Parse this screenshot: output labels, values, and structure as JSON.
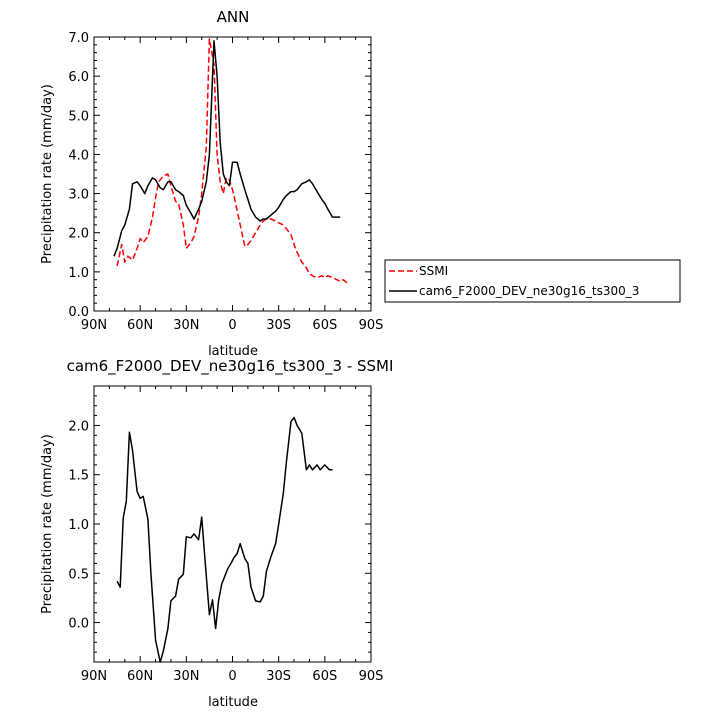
{
  "chart_data": [
    {
      "type": "line",
      "title": "ANN",
      "xlabel": "latitude",
      "ylabel": "Precipitation rate (mm/day)",
      "xlim": [
        90,
        -90
      ],
      "ylim": [
        0,
        7
      ],
      "x_ticks": [
        90,
        60,
        30,
        0,
        -30,
        -60,
        -90
      ],
      "x_tick_labels": [
        "90N",
        "60N",
        "30N",
        "0",
        "30S",
        "60S",
        "90S"
      ],
      "y_ticks": [
        0,
        1,
        2,
        3,
        4,
        5,
        6,
        7
      ],
      "y_tick_labels": [
        "0.0",
        "1.0",
        "2.0",
        "3.0",
        "4.0",
        "5.0",
        "6.0",
        "7.0"
      ],
      "legend_position": "right",
      "series": [
        {
          "name": "SSMI",
          "color": "#ff0000",
          "style": "dashed",
          "x": [
            75,
            72,
            70,
            68,
            65,
            62,
            60,
            58,
            55,
            52,
            50,
            48,
            45,
            42,
            40,
            37,
            35,
            32,
            30,
            27,
            25,
            22,
            20,
            17,
            15,
            12,
            10,
            8,
            6,
            4,
            2,
            0,
            -2,
            -5,
            -8,
            -10,
            -12,
            -15,
            -18,
            -20,
            -22,
            -25,
            -28,
            -30,
            -33,
            -35,
            -38,
            -40,
            -42,
            -45,
            -48,
            -50,
            -52,
            -55,
            -58,
            -60,
            -62,
            -65,
            -68,
            -70,
            -72,
            -75
          ],
          "y": [
            1.15,
            1.7,
            1.25,
            1.4,
            1.3,
            1.6,
            1.85,
            1.75,
            1.9,
            2.4,
            2.9,
            3.3,
            3.45,
            3.5,
            3.2,
            2.8,
            2.75,
            2.2,
            1.6,
            1.75,
            1.9,
            2.4,
            3.0,
            4.2,
            6.95,
            6.3,
            4.0,
            3.3,
            3.0,
            3.4,
            3.35,
            3.1,
            2.75,
            2.2,
            1.65,
            1.7,
            1.8,
            2.0,
            2.2,
            2.3,
            2.35,
            2.35,
            2.3,
            2.25,
            2.2,
            2.1,
            1.95,
            1.7,
            1.5,
            1.25,
            1.1,
            0.95,
            0.9,
            0.85,
            0.9,
            0.85,
            0.9,
            0.85,
            0.8,
            0.75,
            0.8,
            0.7
          ]
        },
        {
          "name": "cam6_F2000_DEV_ne30g16_ts300_3",
          "color": "#000000",
          "style": "solid",
          "x": [
            77,
            75,
            72,
            70,
            67,
            65,
            62,
            60,
            57,
            55,
            52,
            50,
            47,
            45,
            42,
            40,
            37,
            35,
            32,
            30,
            27,
            25,
            22,
            20,
            17,
            15,
            12,
            10,
            8,
            6,
            4,
            2,
            0,
            -3,
            -5,
            -8,
            -10,
            -12,
            -15,
            -18,
            -20,
            -22,
            -25,
            -28,
            -30,
            -33,
            -35,
            -38,
            -40,
            -42,
            -45,
            -48,
            -50,
            -52,
            -55,
            -58,
            -60,
            -62,
            -65,
            -68,
            -70
          ],
          "y": [
            1.4,
            1.6,
            2.05,
            2.2,
            2.6,
            3.25,
            3.3,
            3.2,
            3.0,
            3.2,
            3.4,
            3.35,
            3.15,
            3.1,
            3.3,
            3.3,
            3.1,
            3.05,
            2.95,
            2.7,
            2.5,
            2.35,
            2.6,
            2.8,
            3.3,
            4.0,
            6.9,
            6.0,
            4.3,
            3.5,
            3.3,
            3.2,
            3.8,
            3.8,
            3.5,
            3.1,
            2.85,
            2.6,
            2.4,
            2.3,
            2.35,
            2.35,
            2.45,
            2.55,
            2.65,
            2.85,
            2.95,
            3.05,
            3.05,
            3.1,
            3.25,
            3.3,
            3.35,
            3.25,
            3.05,
            2.85,
            2.75,
            2.6,
            2.4,
            2.4,
            2.4
          ]
        }
      ]
    },
    {
      "type": "line",
      "title": "cam6_F2000_DEV_ne30g16_ts300_3 - SSMI",
      "xlabel": "latitude",
      "ylabel": "Precipitation rate (mm/day)",
      "xlim": [
        90,
        -90
      ],
      "ylim": [
        -0.4,
        2.4
      ],
      "x_ticks": [
        90,
        60,
        30,
        0,
        -30,
        -60,
        -90
      ],
      "x_tick_labels": [
        "90N",
        "60N",
        "30N",
        "0",
        "30S",
        "60S",
        "90S"
      ],
      "y_ticks": [
        0,
        0.5,
        1,
        1.5,
        2
      ],
      "y_tick_labels": [
        "0.0",
        "0.5",
        "1.0",
        "1.5",
        "2.0"
      ],
      "series": [
        {
          "color": "#000000",
          "style": "solid",
          "x": [
            75,
            73,
            71,
            69,
            67,
            65,
            62,
            60,
            58,
            55,
            53,
            50,
            47,
            45,
            42,
            40,
            37,
            35,
            32,
            30,
            27,
            25,
            22,
            20,
            17,
            15,
            13,
            11,
            9,
            7,
            5,
            3,
            1,
            -1,
            -3,
            -5,
            -8,
            -10,
            -12,
            -15,
            -18,
            -20,
            -22,
            -25,
            -28,
            -30,
            -33,
            -35,
            -38,
            -40,
            -42,
            -45,
            -48,
            -50,
            -52,
            -55,
            -57,
            -60,
            -63,
            -65
          ],
          "y": [
            0.42,
            0.36,
            1.06,
            1.23,
            1.93,
            1.75,
            1.33,
            1.26,
            1.28,
            1.05,
            0.5,
            -0.18,
            -0.4,
            -0.29,
            -0.06,
            0.22,
            0.27,
            0.44,
            0.49,
            0.87,
            0.86,
            0.9,
            0.84,
            1.07,
            0.47,
            0.08,
            0.23,
            -0.06,
            0.23,
            0.39,
            0.47,
            0.55,
            0.6,
            0.66,
            0.7,
            0.8,
            0.65,
            0.6,
            0.36,
            0.22,
            0.21,
            0.27,
            0.52,
            0.67,
            0.8,
            1.0,
            1.31,
            1.63,
            2.04,
            2.08,
            2.0,
            1.92,
            1.55,
            1.6,
            1.55,
            1.6,
            1.55,
            1.6,
            1.55,
            1.55
          ]
        }
      ]
    }
  ]
}
